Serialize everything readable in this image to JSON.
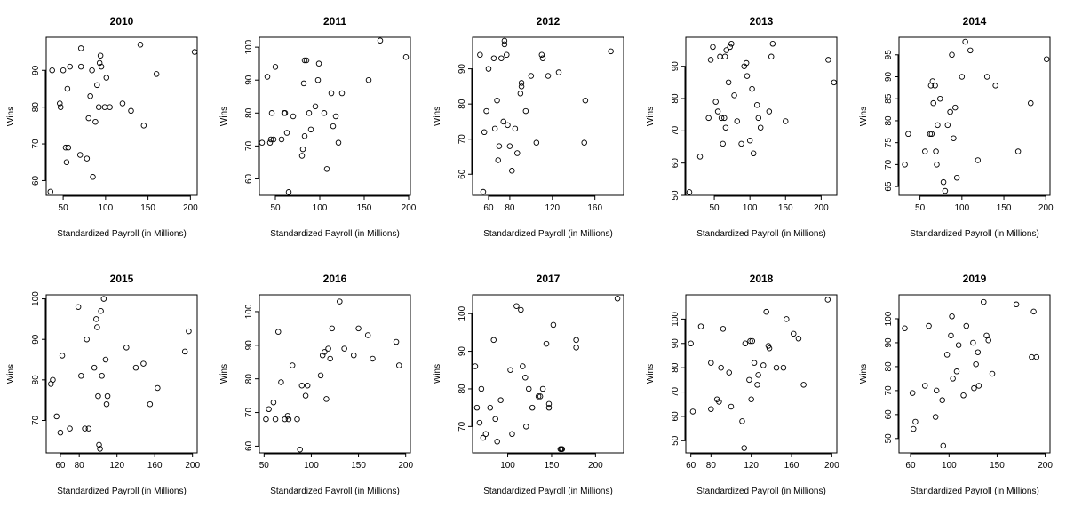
{
  "chart_data": [
    {
      "type": "scatter",
      "title": "2010",
      "xlabel": "Standardized Payroll (in Millions)",
      "ylabel": "Wins",
      "xlim": [
        30,
        208
      ],
      "ylim": [
        56,
        99
      ],
      "xticks": [
        50,
        100,
        150,
        200
      ],
      "yticks": [
        60,
        70,
        80,
        90
      ],
      "points": [
        [
          35,
          57
        ],
        [
          37,
          90
        ],
        [
          46,
          81
        ],
        [
          47,
          80
        ],
        [
          50,
          90
        ],
        [
          53,
          69
        ],
        [
          54,
          65
        ],
        [
          55,
          85
        ],
        [
          56,
          69
        ],
        [
          58,
          91
        ],
        [
          70,
          67
        ],
        [
          71,
          96
        ],
        [
          71,
          91
        ],
        [
          78,
          66
        ],
        [
          80,
          77
        ],
        [
          82,
          83
        ],
        [
          84,
          90
        ],
        [
          85,
          61
        ],
        [
          88,
          76
        ],
        [
          90,
          86
        ],
        [
          92,
          80
        ],
        [
          93,
          92
        ],
        [
          94,
          94
        ],
        [
          95,
          91
        ],
        [
          99,
          80
        ],
        [
          101,
          88
        ],
        [
          105,
          80
        ],
        [
          120,
          81
        ],
        [
          130,
          79
        ],
        [
          141,
          97
        ],
        [
          145,
          75
        ],
        [
          160,
          89
        ],
        [
          205,
          95
        ]
      ]
    },
    {
      "type": "scatter",
      "title": "2011",
      "xlabel": "Standardized Payroll (in Millions)",
      "ylabel": "Wins",
      "xlim": [
        32,
        202
      ],
      "ylim": [
        55,
        103
      ],
      "xticks": [
        50,
        100,
        150,
        200
      ],
      "yticks": [
        60,
        70,
        80,
        90,
        100
      ],
      "points": [
        [
          35,
          71
        ],
        [
          41,
          91
        ],
        [
          44,
          71
        ],
        [
          45,
          72
        ],
        [
          46,
          80
        ],
        [
          48,
          72
        ],
        [
          50,
          94
        ],
        [
          57,
          72
        ],
        [
          60,
          80
        ],
        [
          61,
          80
        ],
        [
          63,
          74
        ],
        [
          65,
          56
        ],
        [
          70,
          79
        ],
        [
          80,
          67
        ],
        [
          81,
          69
        ],
        [
          82,
          89
        ],
        [
          83,
          73
        ],
        [
          83,
          96
        ],
        [
          85,
          96
        ],
        [
          88,
          80
        ],
        [
          90,
          75
        ],
        [
          95,
          82
        ],
        [
          98,
          90
        ],
        [
          99,
          95
        ],
        [
          105,
          80
        ],
        [
          108,
          63
        ],
        [
          113,
          86
        ],
        [
          115,
          76
        ],
        [
          118,
          79
        ],
        [
          121,
          71
        ],
        [
          125,
          86
        ],
        [
          155,
          90
        ],
        [
          168,
          102
        ],
        [
          197,
          97
        ]
      ]
    },
    {
      "type": "scatter",
      "title": "2012",
      "xlabel": "Standardized Payroll (in Millions)",
      "ylabel": "Wins",
      "xlim": [
        45,
        187
      ],
      "ylim": [
        54,
        99
      ],
      "xticks": [
        60,
        80,
        120,
        160
      ],
      "yticks": [
        60,
        70,
        80,
        90
      ],
      "points": [
        [
          52,
          94
        ],
        [
          55,
          55
        ],
        [
          56,
          72
        ],
        [
          58,
          78
        ],
        [
          60,
          90
        ],
        [
          65,
          93
        ],
        [
          66,
          73
        ],
        [
          68,
          81
        ],
        [
          69,
          64
        ],
        [
          70,
          68
        ],
        [
          72,
          93
        ],
        [
          74,
          75
        ],
        [
          75,
          98
        ],
        [
          75,
          97
        ],
        [
          77,
          94
        ],
        [
          78,
          74
        ],
        [
          80,
          68
        ],
        [
          82,
          61
        ],
        [
          85,
          73
        ],
        [
          87,
          66
        ],
        [
          90,
          83
        ],
        [
          91,
          86
        ],
        [
          91,
          85
        ],
        [
          95,
          78
        ],
        [
          100,
          88
        ],
        [
          105,
          69
        ],
        [
          110,
          94
        ],
        [
          111,
          93
        ],
        [
          116,
          88
        ],
        [
          126,
          89
        ],
        [
          150,
          69
        ],
        [
          151,
          81
        ],
        [
          175,
          95
        ]
      ]
    },
    {
      "type": "scatter",
      "title": "2013",
      "xlabel": "Standardized Payroll (in Millions)",
      "ylabel": "Wins",
      "xlim": [
        10,
        222
      ],
      "ylim": [
        50,
        99
      ],
      "xticks": [
        50,
        100,
        150,
        200
      ],
      "yticks": [
        50,
        60,
        70,
        80,
        90
      ],
      "points": [
        [
          15,
          51
        ],
        [
          30,
          62
        ],
        [
          42,
          74
        ],
        [
          45,
          92
        ],
        [
          48,
          96
        ],
        [
          52,
          79
        ],
        [
          55,
          76
        ],
        [
          58,
          93
        ],
        [
          60,
          74
        ],
        [
          62,
          66
        ],
        [
          64,
          74
        ],
        [
          65,
          93
        ],
        [
          66,
          71
        ],
        [
          67,
          95
        ],
        [
          70,
          85
        ],
        [
          72,
          96
        ],
        [
          74,
          97
        ],
        [
          78,
          81
        ],
        [
          82,
          73
        ],
        [
          88,
          66
        ],
        [
          92,
          90
        ],
        [
          95,
          91
        ],
        [
          96,
          87
        ],
        [
          100,
          67
        ],
        [
          103,
          83
        ],
        [
          105,
          63
        ],
        [
          110,
          78
        ],
        [
          112,
          74
        ],
        [
          115,
          71
        ],
        [
          127,
          76
        ],
        [
          130,
          93
        ],
        [
          132,
          97
        ],
        [
          150,
          73
        ],
        [
          210,
          92
        ],
        [
          218,
          85
        ]
      ]
    },
    {
      "type": "scatter",
      "title": "2014",
      "xlabel": "Standardized Payroll (in Millions)",
      "ylabel": "Wins",
      "xlim": [
        25,
        205
      ],
      "ylim": [
        63,
        99
      ],
      "xticks": [
        50,
        100,
        150,
        200
      ],
      "yticks": [
        65,
        70,
        75,
        80,
        85,
        90,
        95
      ],
      "points": [
        [
          32,
          70
        ],
        [
          36,
          77
        ],
        [
          56,
          73
        ],
        [
          62,
          77
        ],
        [
          63,
          88
        ],
        [
          64,
          77
        ],
        [
          65,
          89
        ],
        [
          66,
          84
        ],
        [
          68,
          88
        ],
        [
          69,
          73
        ],
        [
          70,
          70
        ],
        [
          71,
          79
        ],
        [
          74,
          85
        ],
        [
          78,
          66
        ],
        [
          80,
          64
        ],
        [
          83,
          79
        ],
        [
          86,
          82
        ],
        [
          88,
          95
        ],
        [
          90,
          76
        ],
        [
          92,
          83
        ],
        [
          94,
          67
        ],
        [
          100,
          90
        ],
        [
          104,
          98
        ],
        [
          110,
          96
        ],
        [
          119,
          71
        ],
        [
          130,
          90
        ],
        [
          140,
          88
        ],
        [
          167,
          73
        ],
        [
          182,
          84
        ],
        [
          201,
          94
        ]
      ]
    },
    {
      "type": "scatter",
      "title": "2015",
      "xlabel": "Standardized Payroll (in Millions)",
      "ylabel": "Wins",
      "xlim": [
        45,
        205
      ],
      "ylim": [
        62,
        101
      ],
      "xticks": [
        60,
        80,
        120,
        160,
        200
      ],
      "yticks": [
        70,
        80,
        90,
        100
      ],
      "points": [
        [
          50,
          79
        ],
        [
          52,
          80
        ],
        [
          56,
          71
        ],
        [
          60,
          67
        ],
        [
          62,
          86
        ],
        [
          70,
          68
        ],
        [
          79,
          98
        ],
        [
          82,
          81
        ],
        [
          86,
          68
        ],
        [
          88,
          90
        ],
        [
          90,
          68
        ],
        [
          96,
          83
        ],
        [
          98,
          95
        ],
        [
          99,
          93
        ],
        [
          100,
          76
        ],
        [
          101,
          64
        ],
        [
          102,
          63
        ],
        [
          103,
          97
        ],
        [
          104,
          81
        ],
        [
          106,
          100
        ],
        [
          108,
          85
        ],
        [
          109,
          74
        ],
        [
          110,
          76
        ],
        [
          130,
          88
        ],
        [
          140,
          83
        ],
        [
          148,
          84
        ],
        [
          155,
          74
        ],
        [
          163,
          78
        ],
        [
          192,
          87
        ],
        [
          196,
          92
        ]
      ]
    },
    {
      "type": "scatter",
      "title": "2016",
      "xlabel": "Standardized Payroll (in Millions)",
      "ylabel": "Wins",
      "xlim": [
        45,
        205
      ],
      "ylim": [
        58,
        105
      ],
      "xticks": [
        50,
        100,
        150,
        200
      ],
      "yticks": [
        60,
        70,
        80,
        90,
        100
      ],
      "points": [
        [
          52,
          68
        ],
        [
          55,
          71
        ],
        [
          60,
          73
        ],
        [
          62,
          68
        ],
        [
          65,
          94
        ],
        [
          68,
          79
        ],
        [
          72,
          68
        ],
        [
          75,
          69
        ],
        [
          76,
          68
        ],
        [
          80,
          84
        ],
        [
          85,
          68
        ],
        [
          88,
          59
        ],
        [
          90,
          78
        ],
        [
          94,
          75
        ],
        [
          96,
          78
        ],
        [
          110,
          81
        ],
        [
          112,
          87
        ],
        [
          114,
          88
        ],
        [
          116,
          74
        ],
        [
          118,
          89
        ],
        [
          120,
          86
        ],
        [
          122,
          95
        ],
        [
          130,
          103
        ],
        [
          135,
          89
        ],
        [
          145,
          87
        ],
        [
          150,
          95
        ],
        [
          160,
          93
        ],
        [
          165,
          86
        ],
        [
          190,
          91
        ],
        [
          193,
          84
        ]
      ]
    },
    {
      "type": "scatter",
      "title": "2017",
      "xlabel": "Standardized Payroll (in Millions)",
      "ylabel": "Wins",
      "xlim": [
        60,
        232
      ],
      "ylim": [
        63,
        105
      ],
      "xticks": [
        100,
        150,
        200
      ],
      "yticks": [
        70,
        80,
        90,
        100
      ],
      "points": [
        [
          63,
          86
        ],
        [
          65,
          75
        ],
        [
          68,
          71
        ],
        [
          70,
          80
        ],
        [
          72,
          67
        ],
        [
          75,
          68
        ],
        [
          80,
          75
        ],
        [
          84,
          93
        ],
        [
          86,
          72
        ],
        [
          88,
          66
        ],
        [
          92,
          77
        ],
        [
          103,
          85
        ],
        [
          105,
          68
        ],
        [
          110,
          102
        ],
        [
          115,
          101
        ],
        [
          117,
          86
        ],
        [
          120,
          83
        ],
        [
          121,
          70
        ],
        [
          124,
          80
        ],
        [
          128,
          75
        ],
        [
          135,
          78
        ],
        [
          137,
          78
        ],
        [
          140,
          80
        ],
        [
          144,
          92
        ],
        [
          147,
          76
        ],
        [
          147,
          75
        ],
        [
          152,
          97
        ],
        [
          160,
          64
        ],
        [
          161,
          64
        ],
        [
          162,
          64
        ],
        [
          178,
          93
        ],
        [
          178,
          91
        ],
        [
          225,
          104
        ]
      ]
    },
    {
      "type": "scatter",
      "title": "2018",
      "xlabel": "Standardized Payroll (in Millions)",
      "ylabel": "Wins",
      "xlim": [
        55,
        205
      ],
      "ylim": [
        45,
        110
      ],
      "xticks": [
        60,
        80,
        120,
        160,
        200
      ],
      "yticks": [
        50,
        60,
        70,
        80,
        90,
        100
      ],
      "points": [
        [
          60,
          90
        ],
        [
          62,
          62
        ],
        [
          70,
          97
        ],
        [
          80,
          63
        ],
        [
          80,
          82
        ],
        [
          86,
          67
        ],
        [
          88,
          66
        ],
        [
          90,
          80
        ],
        [
          92,
          96
        ],
        [
          98,
          78
        ],
        [
          100,
          64
        ],
        [
          111,
          58
        ],
        [
          113,
          47
        ],
        [
          114,
          90
        ],
        [
          118,
          75
        ],
        [
          119,
          91
        ],
        [
          120,
          67
        ],
        [
          121,
          91
        ],
        [
          123,
          82
        ],
        [
          126,
          73
        ],
        [
          127,
          77
        ],
        [
          132,
          81
        ],
        [
          135,
          103
        ],
        [
          137,
          89
        ],
        [
          138,
          88
        ],
        [
          145,
          80
        ],
        [
          152,
          80
        ],
        [
          155,
          100
        ],
        [
          162,
          94
        ],
        [
          167,
          92
        ],
        [
          172,
          73
        ],
        [
          196,
          108
        ]
      ]
    },
    {
      "type": "scatter",
      "title": "2019",
      "xlabel": "Standardized Payroll (in Millions)",
      "ylabel": "Wins",
      "xlim": [
        48,
        205
      ],
      "ylim": [
        44,
        110
      ],
      "xticks": [
        60,
        100,
        150,
        200
      ],
      "yticks": [
        50,
        60,
        70,
        80,
        90,
        100
      ],
      "points": [
        [
          54,
          96
        ],
        [
          62,
          69
        ],
        [
          63,
          54
        ],
        [
          65,
          57
        ],
        [
          75,
          72
        ],
        [
          79,
          97
        ],
        [
          86,
          59
        ],
        [
          87,
          70
        ],
        [
          93,
          66
        ],
        [
          94,
          47
        ],
        [
          98,
          85
        ],
        [
          102,
          93
        ],
        [
          103,
          101
        ],
        [
          104,
          75
        ],
        [
          108,
          78
        ],
        [
          110,
          89
        ],
        [
          115,
          68
        ],
        [
          118,
          97
        ],
        [
          125,
          90
        ],
        [
          126,
          71
        ],
        [
          128,
          81
        ],
        [
          130,
          86
        ],
        [
          131,
          72
        ],
        [
          136,
          107
        ],
        [
          139,
          93
        ],
        [
          141,
          91
        ],
        [
          145,
          77
        ],
        [
          170,
          106
        ],
        [
          186,
          84
        ],
        [
          188,
          103
        ],
        [
          191,
          84
        ]
      ]
    }
  ]
}
